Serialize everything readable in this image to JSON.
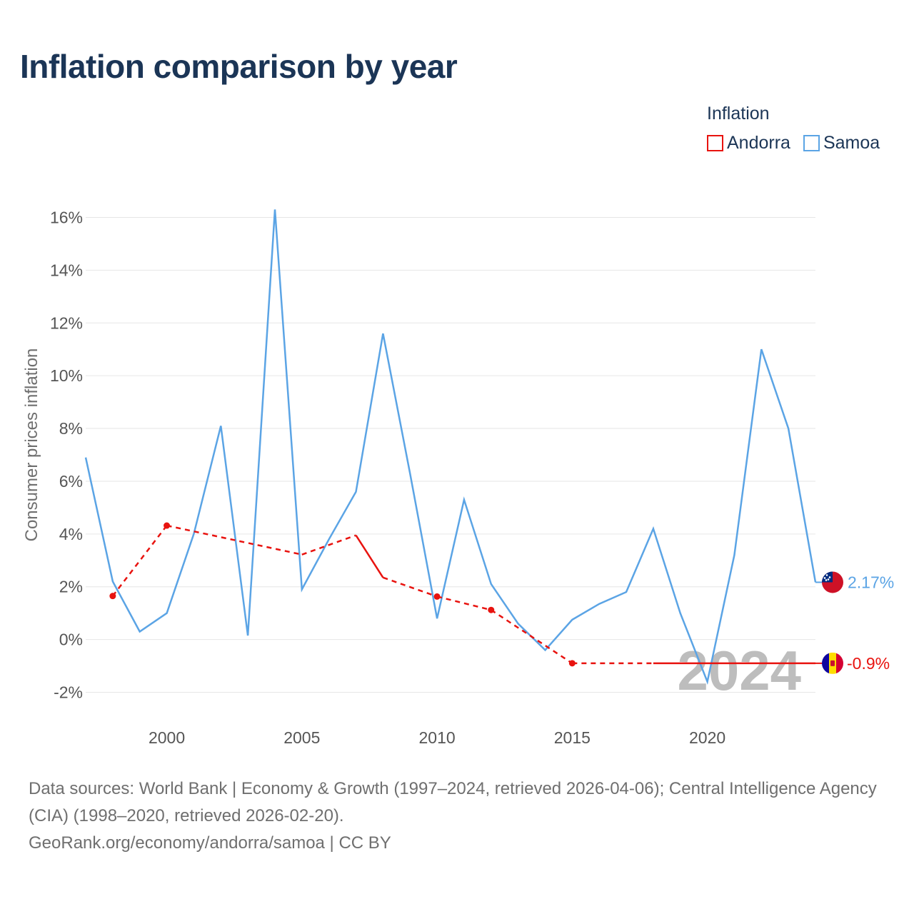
{
  "title": "Inflation comparison by year",
  "legend": {
    "title": "Inflation",
    "items": [
      {
        "label": "Andorra",
        "color": "#e8130f"
      },
      {
        "label": "Samoa",
        "color": "#5ba4e5"
      }
    ]
  },
  "footer": {
    "sources": "Data sources: World Bank | Economy & Growth (1997–2024, retrieved 2026-04-06); Central Intelligence Agency (CIA) (1998–2020, retrieved 2026-02-20).",
    "credit": "GeoRank.org/economy/andorra/samoa | CC BY"
  },
  "chart_data": {
    "type": "line",
    "ylabel": "Consumer prices inflation",
    "xlim": [
      1997,
      2024
    ],
    "ylim": [
      -3,
      16.5
    ],
    "x_ticks": [
      2000,
      2005,
      2010,
      2015,
      2020
    ],
    "y_ticks": [
      -2,
      0,
      2,
      4,
      6,
      8,
      10,
      12,
      14,
      16
    ],
    "y_tick_labels": [
      "-2%",
      "0%",
      "2%",
      "4%",
      "6%",
      "8%",
      "10%",
      "12%",
      "14%",
      "16%"
    ],
    "watermark_year": "2024",
    "series": [
      {
        "name": "Andorra",
        "color": "#e8130f",
        "end_label": "-0.9%",
        "flag": "andorra-flag",
        "points": [
          [
            1998,
            1.65
          ],
          [
            2000,
            4.32
          ],
          [
            2005,
            3.22
          ],
          [
            2007,
            3.95
          ],
          [
            2008,
            2.35
          ],
          [
            2010,
            1.63
          ],
          [
            2012,
            1.12
          ],
          [
            2015,
            -0.9
          ],
          [
            2018,
            -0.9
          ],
          [
            2024,
            -0.9
          ]
        ],
        "solid_segments": [
          [
            2007,
            2008
          ],
          [
            2018,
            2024
          ]
        ],
        "markers": [
          1998,
          2000,
          2010,
          2012,
          2015
        ]
      },
      {
        "name": "Samoa",
        "color": "#5ba4e5",
        "end_label": "2.17%",
        "flag": "samoa-flag",
        "points": [
          [
            1997,
            6.9
          ],
          [
            1998,
            2.2
          ],
          [
            1999,
            0.3
          ],
          [
            2000,
            1.0
          ],
          [
            2001,
            4.0
          ],
          [
            2002,
            8.1
          ],
          [
            2003,
            0.15
          ],
          [
            2004,
            16.3
          ],
          [
            2005,
            1.9
          ],
          [
            2006,
            3.8
          ],
          [
            2007,
            5.6
          ],
          [
            2008,
            11.6
          ],
          [
            2009,
            6.3
          ],
          [
            2010,
            0.8
          ],
          [
            2011,
            5.3
          ],
          [
            2012,
            2.1
          ],
          [
            2013,
            0.6
          ],
          [
            2014,
            -0.4
          ],
          [
            2015,
            0.75
          ],
          [
            2016,
            1.35
          ],
          [
            2017,
            1.8
          ],
          [
            2018,
            4.2
          ],
          [
            2019,
            1.0
          ],
          [
            2020,
            -1.6
          ],
          [
            2021,
            3.2
          ],
          [
            2022,
            11.0
          ],
          [
            2023,
            8.0
          ],
          [
            2024,
            2.17
          ]
        ]
      }
    ]
  }
}
